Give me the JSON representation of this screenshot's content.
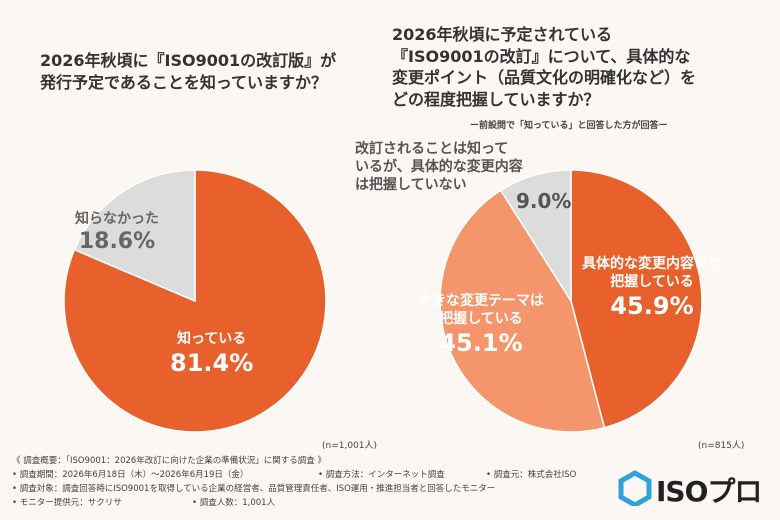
{
  "chart_data": [
    {
      "type": "pie",
      "title": "2026年秋頃に『ISO9001の改訂版』が発行予定であることを知っていますか？",
      "slices": [
        {
          "label": "知っている",
          "value": 81.4,
          "value_label": "81.4%",
          "color": "#e8612c"
        },
        {
          "label": "知らなかった",
          "value": 18.6,
          "value_label": "18.6%",
          "color": "#dcdcdc"
        }
      ],
      "n_label": "(n=1,001人)"
    },
    {
      "type": "pie",
      "title": "2026年秋頃に予定されている『ISO9001の改訂』について、具体的な変更ポイント（品質文化の明確化など）をどの程度把握していますか？",
      "subtitle": "ー前設問で「知っている」と回答した方が回答ー",
      "slices": [
        {
          "label": "具体的な変更内容まで把握している",
          "value": 45.9,
          "value_label": "45.9%",
          "color": "#e8612c"
        },
        {
          "label": "大きな変更テーマは把握している",
          "value": 45.1,
          "value_label": "45.1%",
          "color": "#f5956c"
        },
        {
          "label": "改訂されることは知っているが、具体的な変更内容は把握していない",
          "value": 9.0,
          "value_label": "9.0%",
          "color": "#dcdcdc"
        }
      ],
      "n_label": "(n=815人)"
    }
  ],
  "q1": {
    "line1": "2026年秋頃に『ISO9001の改訂版』が",
    "line2": "発行予定であることを知っていますか？"
  },
  "q2": {
    "line1": "2026年秋頃に予定されている",
    "line2": "『ISO9001の改訂』について、具体的な",
    "line3": "変更ポイント（品質文化の明確化など）を",
    "line4": "どの程度把握していますか？",
    "sub": "ー前設問で「知っている」と回答した方が回答ー"
  },
  "labels": {
    "c1_know": "知っている",
    "c1_know_pct": "81.4%",
    "c1_unknown": "知らなかった",
    "c1_unknown_pct": "18.6%",
    "c2_a_l1": "具体的な変更内容まで",
    "c2_a_l2": "把握している",
    "c2_a_pct": "45.9%",
    "c2_b_l1": "大きな変更テーマは",
    "c2_b_l2": "把握している",
    "c2_b_pct": "45.1%",
    "c2_c_l1": "改訂されることは知って",
    "c2_c_l2": "いるが、具体的な変更内容",
    "c2_c_l3": "は把握していない",
    "c2_c_pct": "9.0%"
  },
  "footer": {
    "overview": "《 調査概要：「ISO9001：2026年改訂に向けた企業の準備状況」に関する調査 》",
    "period": "• 調査期間：2026年6月18日（木）〜2026年6月19日（金）",
    "method": "• 調査方法：インターネット調査",
    "source": "• 調査元：株式会社ISO",
    "target": "• 調査対象：調査回答時にISO9001を取得している企業の経営者、品質管理責任者、ISO運用・推進担当者と回答したモニター",
    "provider": "• モニター提供元：サクリサ",
    "count": "• 調査人数：1,001人"
  },
  "logo": {
    "text": "ISOプロ",
    "color": "#2fa3d8"
  }
}
